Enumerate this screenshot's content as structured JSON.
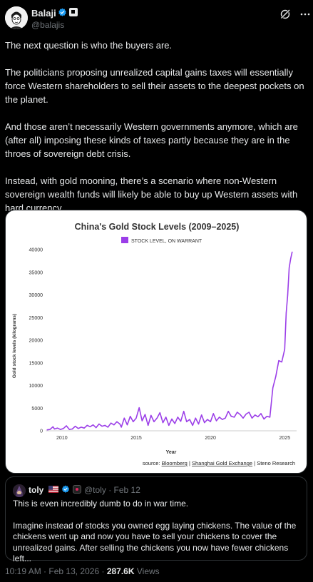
{
  "author": {
    "name": "Balaji",
    "handle": "@balajis",
    "verified": true,
    "avatar_icon": "sketch-portrait-avatar"
  },
  "tweet": {
    "paragraphs": [
      "The next question is who the buyers are.",
      "The politicians proposing unrealized capital gains taxes will essentially force Western shareholders to sell their assets to the deepest pockets on the planet.",
      "And those aren’t necessarily Western governments anymore, which are (after all) imposing these kinds of taxes partly because they are in the throes of sovereign debt crisis.",
      "Instead, with gold mooning, there’s a scenario where non-Western sovereign wealth funds will likely be able to buy up Western assets with hard currency."
    ]
  },
  "chart_data": {
    "type": "line",
    "title": "China's Gold Stock Levels (2009–2025)",
    "xlabel": "Year",
    "ylabel": "Gold stock levels (kilograms)",
    "ylim": [
      0,
      40000
    ],
    "yticks": [
      "0",
      "5000",
      "10000",
      "15000",
      "20000",
      "25000",
      "30000",
      "35000",
      "40000"
    ],
    "xticks": [
      "2010",
      "2015",
      "2020",
      "2025"
    ],
    "xlim": [
      2009,
      2025.8
    ],
    "legend": "top-center",
    "grid": false,
    "source_label": "source:",
    "sources": [
      "Bloomberg",
      "Shanghai Gold Exchange",
      "Steno Research"
    ],
    "series": [
      {
        "name": "STOCK LEVEL, ON WARRANT",
        "color": "#9b3ee8",
        "x": [
          2009.0,
          2009.2,
          2009.4,
          2009.5,
          2009.7,
          2009.9,
          2010.1,
          2010.3,
          2010.5,
          2010.7,
          2010.9,
          2011.1,
          2011.3,
          2011.5,
          2011.7,
          2011.9,
          2012.1,
          2012.3,
          2012.5,
          2012.7,
          2012.9,
          2013.1,
          2013.3,
          2013.5,
          2013.7,
          2013.9,
          2014.0,
          2014.2,
          2014.4,
          2014.6,
          2014.8,
          2015.0,
          2015.2,
          2015.4,
          2015.6,
          2015.8,
          2016.0,
          2016.2,
          2016.4,
          2016.6,
          2016.8,
          2017.0,
          2017.2,
          2017.4,
          2017.6,
          2017.8,
          2018.0,
          2018.2,
          2018.4,
          2018.6,
          2018.8,
          2019.0,
          2019.2,
          2019.4,
          2019.6,
          2019.8,
          2020.0,
          2020.2,
          2020.4,
          2020.6,
          2020.8,
          2021.0,
          2021.2,
          2021.4,
          2021.6,
          2021.8,
          2022.0,
          2022.2,
          2022.4,
          2022.6,
          2022.8,
          2023.0,
          2023.2,
          2023.4,
          2023.6,
          2023.8,
          2024.0,
          2024.2,
          2024.4,
          2024.6,
          2024.8,
          2025.0,
          2025.1,
          2025.2,
          2025.3,
          2025.4,
          2025.5
        ],
        "y": [
          200,
          300,
          900,
          400,
          600,
          300,
          500,
          1100,
          300,
          400,
          1000,
          500,
          800,
          600,
          1200,
          900,
          1300,
          700,
          1500,
          1000,
          1200,
          800,
          1700,
          1300,
          2000,
          1500,
          800,
          2800,
          1300,
          3200,
          2000,
          2800,
          5100,
          2200,
          3600,
          1200,
          3400,
          2000,
          2800,
          4000,
          1800,
          3000,
          1200,
          2600,
          1600,
          3000,
          2100,
          4300,
          2000,
          2500,
          1200,
          2800,
          1500,
          3500,
          1800,
          2500,
          2000,
          3800,
          2200,
          3000,
          2500,
          2800,
          4300,
          3200,
          3000,
          4100,
          3600,
          2800,
          3700,
          4100,
          2800,
          3500,
          3100,
          3800,
          2600,
          3200,
          3000,
          9500,
          12000,
          15500,
          15200,
          18000,
          26000,
          30000,
          36000,
          38000,
          39500
        ]
      }
    ]
  },
  "quote": {
    "name": "toly",
    "handle": "@toly",
    "date": "· Feb 12",
    "verified": true,
    "paragraphs": [
      "This is even incredibly dumb to do in war time.",
      "Imagine instead of stocks you owned egg laying chickens.  The value of the chickens went up and now you have to sell your chickens to cover the unrealized gains.  After selling the chickens you now have fewer chickens left..."
    ]
  },
  "meta": {
    "time": "10:19 AM",
    "sep": "·",
    "date": "Feb 13, 2026",
    "views_count": "287.6K",
    "views_label": "Views"
  }
}
